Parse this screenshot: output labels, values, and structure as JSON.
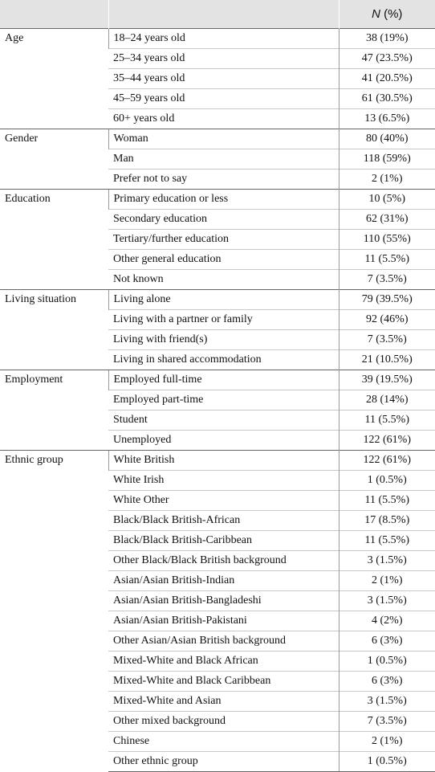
{
  "table": {
    "header": "N (%)",
    "groups": [
      {
        "label": "Age",
        "rows": [
          [
            "18–24 years old",
            "38 (19%)"
          ],
          [
            "25–34 years old",
            "47 (23.5%)"
          ],
          [
            "35–44 years old",
            "41 (20.5%)"
          ],
          [
            "45–59 years old",
            "61 (30.5%)"
          ],
          [
            "60+ years old",
            "13 (6.5%)"
          ]
        ]
      },
      {
        "label": "Gender",
        "rows": [
          [
            "Woman",
            "80 (40%)"
          ],
          [
            "Man",
            "118 (59%)"
          ],
          [
            "Prefer not to say",
            "2 (1%)"
          ]
        ]
      },
      {
        "label": "Education",
        "rows": [
          [
            "Primary education or less",
            "10 (5%)"
          ],
          [
            "Secondary education",
            "62 (31%)"
          ],
          [
            "Tertiary/further education",
            "110 (55%)"
          ],
          [
            "Other general education",
            "11 (5.5%)"
          ],
          [
            "Not known",
            "7 (3.5%)"
          ]
        ]
      },
      {
        "label": "Living situation",
        "rows": [
          [
            "Living alone",
            "79 (39.5%)"
          ],
          [
            "Living with a partner or family",
            "92 (46%)"
          ],
          [
            "Living with friend(s)",
            "7 (3.5%)"
          ],
          [
            "Living in shared accommodation",
            "21 (10.5%)"
          ]
        ]
      },
      {
        "label": "Employment",
        "rows": [
          [
            "Employed full-time",
            "39 (19.5%)"
          ],
          [
            "Employed part-time",
            "28 (14%)"
          ],
          [
            "Student",
            "11 (5.5%)"
          ],
          [
            "Unemployed",
            "122 (61%)"
          ]
        ]
      },
      {
        "label": "Ethnic group",
        "rows": [
          [
            "White British",
            "122 (61%)"
          ],
          [
            "White Irish",
            "1 (0.5%)"
          ],
          [
            "White Other",
            "11 (5.5%)"
          ],
          [
            "Black/Black British-African",
            "17 (8.5%)"
          ],
          [
            "Black/Black British-Caribbean",
            "11 (5.5%)"
          ],
          [
            "Other Black/Black British background",
            "3 (1.5%)"
          ],
          [
            "Asian/Asian British-Indian",
            "2 (1%)"
          ],
          [
            "Asian/Asian British-Bangladeshi",
            "3 (1.5%)"
          ],
          [
            "Asian/Asian British-Pakistani",
            "4 (2%)"
          ],
          [
            "Other Asian/Asian British background",
            "6 (3%)"
          ],
          [
            "Mixed-White and Black African",
            "1 (0.5%)"
          ],
          [
            "Mixed-White and Black Caribbean",
            "6 (3%)"
          ],
          [
            "Mixed-White and Asian",
            "3 (1.5%)"
          ],
          [
            "Other mixed background",
            "7 (3.5%)"
          ],
          [
            "Chinese",
            "2 (1%)"
          ],
          [
            "Other ethnic group",
            "1 (0.5%)"
          ]
        ]
      }
    ]
  }
}
